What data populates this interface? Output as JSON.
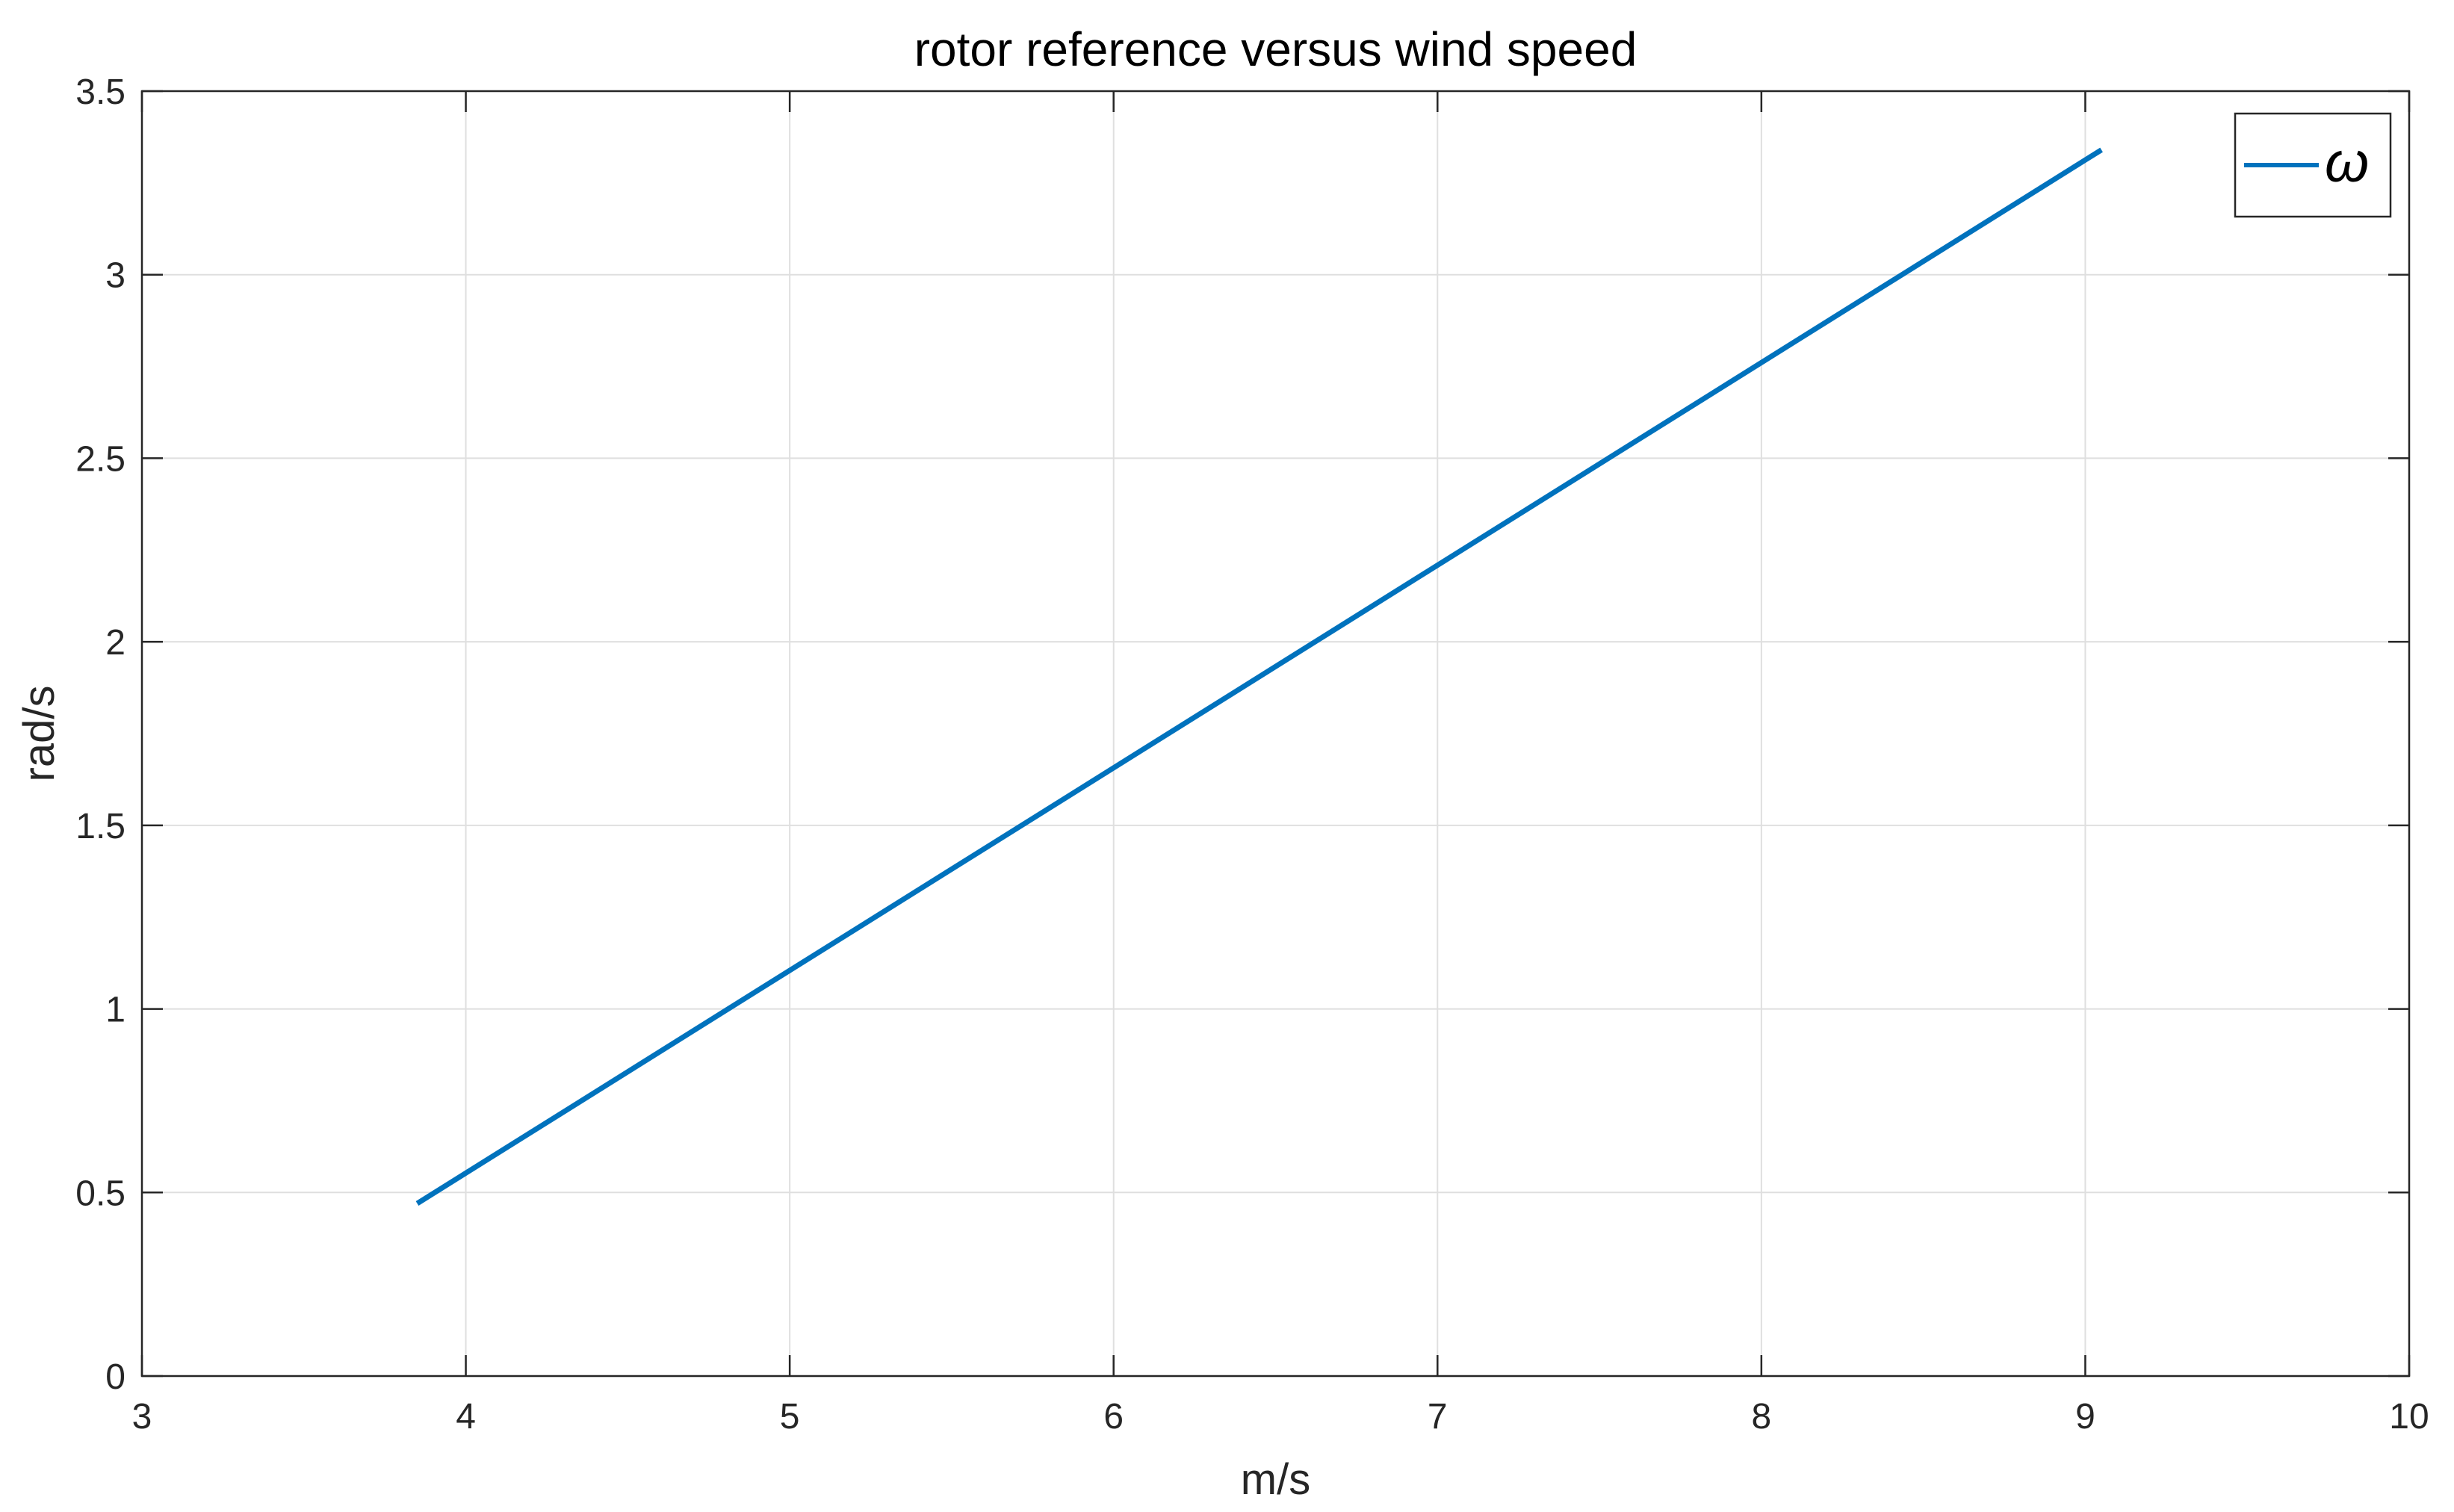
{
  "chart_data": {
    "type": "line",
    "title": "rotor reference versus wind speed",
    "xlabel": "m/s",
    "ylabel": "rad/s",
    "xlim": [
      3,
      10
    ],
    "ylim": [
      0,
      3.5
    ],
    "xticks": [
      3,
      4,
      5,
      6,
      7,
      8,
      9,
      10
    ],
    "yticks": [
      0,
      0.5,
      1,
      1.5,
      2,
      2.5,
      3,
      3.5
    ],
    "xtick_labels": [
      "3",
      "4",
      "5",
      "6",
      "7",
      "8",
      "9",
      "10"
    ],
    "ytick_labels": [
      "0",
      "0.5",
      "1",
      "1.5",
      "2",
      "2.5",
      "3",
      "3.5"
    ],
    "grid": true,
    "legend_position": "top-right",
    "series": [
      {
        "name": "ω",
        "color": "#0072BD",
        "x": [
          3.85,
          9.05
        ],
        "y": [
          0.47,
          3.34
        ]
      }
    ]
  }
}
